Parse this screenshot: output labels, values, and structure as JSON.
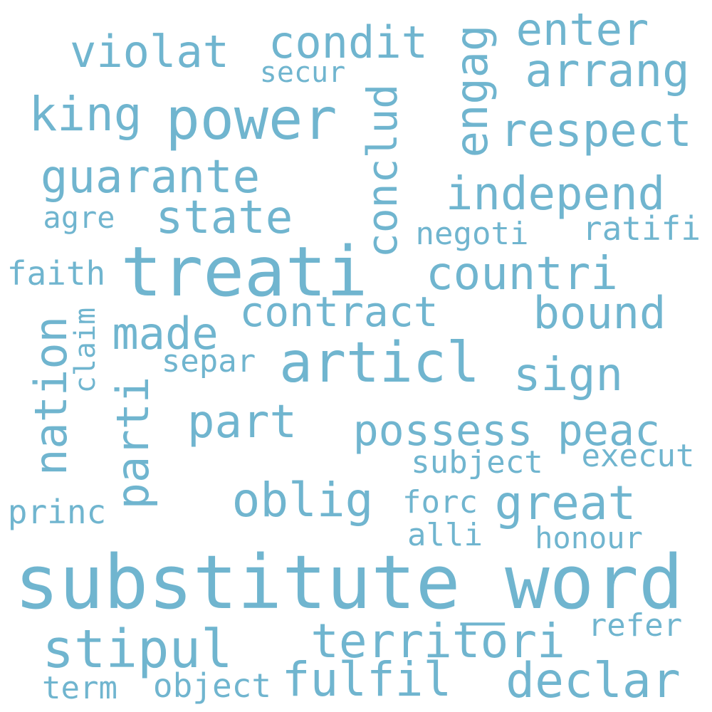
{
  "word_color": "#70b5cf",
  "background": "#ffffff",
  "words": {
    "enter": "enter",
    "violat": "violat",
    "condit": "condit",
    "arrang": "arrang",
    "secur": "secur",
    "king": "king",
    "power": "power",
    "respect": "respect",
    "guarante": "guarante",
    "independ": "independ",
    "state": "state",
    "agre": "agre",
    "negoti": "negoti",
    "ratifi": "ratifi",
    "treati": "treati",
    "faith": "faith",
    "countri": "countri",
    "contract": "contract",
    "bound": "bound",
    "made": "made",
    "articl": "articl",
    "separ": "separ",
    "sign": "sign",
    "part": "part",
    "possess": "possess",
    "peac": "peac",
    "subject": "subject",
    "execut": "execut",
    "oblig": "oblig",
    "great": "great",
    "forc": "forc",
    "princ": "princ",
    "alli": "alli",
    "honour": "honour",
    "substitute_word": "substitute_word",
    "refer": "refer",
    "territori": "territori",
    "stipul": "stipul",
    "fulfil": "fulfil",
    "declar": "declar",
    "term": "term",
    "object": "object",
    "engag": "engag",
    "conclud": "conclud",
    "nation": "nation",
    "parti": "parti",
    "claim": "claim"
  }
}
